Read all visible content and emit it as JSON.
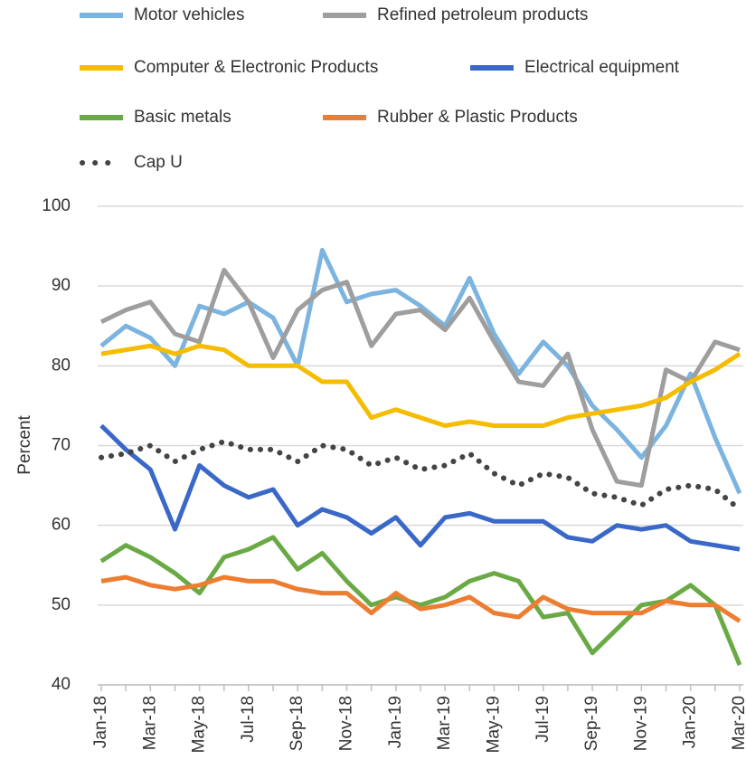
{
  "chart_data": {
    "type": "line",
    "y_label": "Percent",
    "categories": [
      "Jan-18",
      null,
      "Mar-18",
      null,
      "May-18",
      null,
      "Jul-18",
      null,
      "Sep-18",
      null,
      "Nov-18",
      null,
      "Jan-19",
      null,
      "Mar-19",
      null,
      "May-19",
      null,
      "Jul-19",
      null,
      "Sep-19",
      null,
      "Nov-19",
      null,
      "Jan-20",
      null,
      "Mar-20"
    ],
    "ylim": [
      40,
      100
    ],
    "yticks": [
      40,
      50,
      60,
      70,
      80,
      90,
      100
    ],
    "grid": true,
    "legend": "top",
    "series": [
      {
        "name": "Motor vehicles",
        "color": "#7cb4e0",
        "values": [
          82.5,
          85,
          83.5,
          80,
          87.5,
          86.5,
          88,
          86,
          80,
          94.5,
          88,
          89,
          89.5,
          87.5,
          85,
          91,
          84,
          79,
          83,
          80,
          75,
          72,
          68.5,
          72.5,
          79,
          71,
          64
        ]
      },
      {
        "name": "Refined petroleum products",
        "color": "#9e9e9e",
        "values": [
          85.5,
          87,
          88,
          84,
          83,
          92,
          88,
          81,
          87,
          89.5,
          90.5,
          82.5,
          86.5,
          87,
          84.5,
          88.5,
          83,
          78,
          77.5,
          81.5,
          72,
          65.5,
          65,
          79.5,
          78,
          83,
          82
        ]
      },
      {
        "name": "Computer & Electronic Products",
        "color": "#f5bc00",
        "values": [
          81.5,
          82,
          82.5,
          81.5,
          82.5,
          82,
          80,
          80,
          80,
          78,
          78,
          73.5,
          74.5,
          73.5,
          72.5,
          73,
          72.5,
          72.5,
          72.5,
          73.5,
          74,
          74.5,
          75,
          76,
          78,
          79.5,
          81.5
        ]
      },
      {
        "name": "Electrical equipment",
        "color": "#3a68c8",
        "values": [
          72.5,
          69.5,
          67,
          59.5,
          67.5,
          65,
          63.5,
          64.5,
          60,
          62,
          61,
          59,
          61,
          57.5,
          61,
          61.5,
          60.5,
          60.5,
          60.5,
          58.5,
          58,
          60,
          59.5,
          60,
          58,
          57.5,
          57
        ]
      },
      {
        "name": "Basic metals",
        "color": "#6aaa45",
        "values": [
          55.5,
          57.5,
          56,
          54,
          51.5,
          56,
          57,
          58.5,
          54.5,
          56.5,
          53,
          50,
          51,
          50,
          51,
          53,
          54,
          53,
          48.5,
          49,
          44,
          47,
          50,
          50.5,
          52.5,
          50,
          42.5
        ]
      },
      {
        "name": "Rubber & Plastic Products",
        "color": "#ed7d31",
        "values": [
          53,
          53.5,
          52.5,
          52,
          52.5,
          53.5,
          53,
          53,
          52,
          51.5,
          51.5,
          49,
          51.5,
          49.5,
          50,
          51,
          49,
          48.5,
          51,
          49.5,
          49,
          49,
          49,
          50.5,
          50,
          50,
          48
        ]
      },
      {
        "name": "Cap U",
        "color": "#444444",
        "dotted": true,
        "values": [
          68.5,
          69,
          70,
          68,
          69.5,
          70.5,
          69.5,
          69.5,
          68,
          70,
          69.5,
          67.5,
          68.5,
          67,
          67.5,
          69,
          66.5,
          65,
          66.5,
          66,
          64,
          63.5,
          62.5,
          64.5,
          65,
          64.5,
          62
        ]
      }
    ]
  }
}
